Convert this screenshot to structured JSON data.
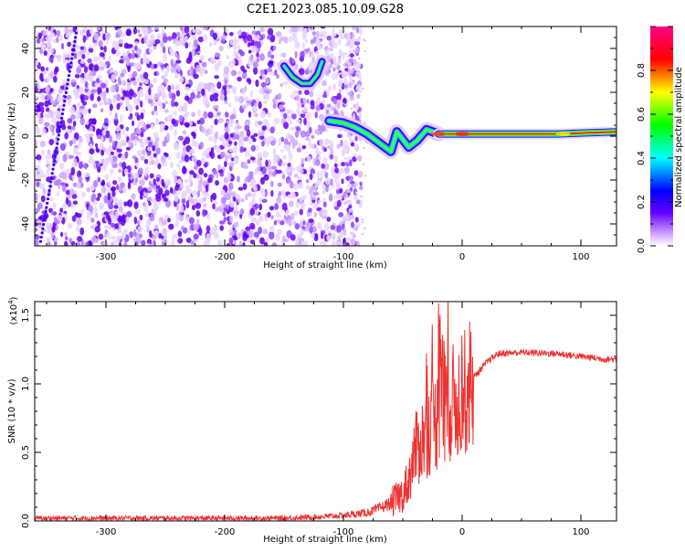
{
  "title": "C2E1.2023.085.10.09.G28",
  "chart_data": [
    {
      "type": "heatmap",
      "xlabel": "Height of straight line (km)",
      "ylabel": "Frequency (Hz)",
      "xlim": [
        -360,
        130
      ],
      "ylim": [
        -50,
        50
      ],
      "xticks": [
        -300,
        -200,
        -100,
        0,
        100
      ],
      "yticks": [
        -40,
        -20,
        0,
        20,
        40
      ],
      "colorbar": {
        "label": "Normalized spectral amplitude",
        "range": [
          0.0,
          1.0
        ],
        "ticks": [
          0.0,
          0.2,
          0.4,
          0.6,
          0.8
        ],
        "colors": [
          "#ffffff",
          "#6600ff",
          "#0000ff",
          "#00ffff",
          "#00ff00",
          "#ffff00",
          "#ff0000",
          "#ff00aa"
        ]
      },
      "features": {
        "noise_region_x": [
          -360,
          -100
        ],
        "noise_color": "#7a00ff",
        "signal_trace": [
          {
            "x": -150,
            "y": 32
          },
          {
            "x": -143,
            "y": 27
          },
          {
            "x": -135,
            "y": 24
          },
          {
            "x": -128,
            "y": 24
          },
          {
            "x": -122,
            "y": 28
          },
          {
            "x": -118,
            "y": 34
          },
          {
            "x": -112,
            "y": 7
          },
          {
            "x": -100,
            "y": 6
          },
          {
            "x": -90,
            "y": 4
          },
          {
            "x": -80,
            "y": 1
          },
          {
            "x": -70,
            "y": -3
          },
          {
            "x": -60,
            "y": -7
          },
          {
            "x": -55,
            "y": 2
          },
          {
            "x": -45,
            "y": -5
          },
          {
            "x": -38,
            "y": -2
          },
          {
            "x": -30,
            "y": 3
          },
          {
            "x": -20,
            "y": 1
          },
          {
            "x": 0,
            "y": 1
          },
          {
            "x": 40,
            "y": 1
          },
          {
            "x": 80,
            "y": 1
          },
          {
            "x": 130,
            "y": 2
          }
        ]
      }
    },
    {
      "type": "line",
      "xlabel": "Height of straight line (km)",
      "ylabel": "SNR (10 * v/v)",
      "yscale_label": "(x10",
      "yscale_exp": "4",
      "yscale_close": ")",
      "xlim": [
        -360,
        130
      ],
      "ylim": [
        0,
        1.6
      ],
      "xticks": [
        -300,
        -200,
        -100,
        0,
        100
      ],
      "yticks": [
        "0.0",
        "0.5",
        "1.0",
        "1.5"
      ],
      "series": [
        {
          "color": "#ee3333",
          "x": [
            -360,
            -300,
            -200,
            -150,
            -120,
            -100,
            -80,
            -70,
            -60,
            -50,
            -45,
            -40,
            -30,
            -20,
            -15,
            -10,
            0,
            10,
            20,
            30,
            50,
            80,
            100,
            120,
            130
          ],
          "y": [
            0.02,
            0.02,
            0.02,
            0.02,
            0.03,
            0.04,
            0.06,
            0.09,
            0.13,
            0.2,
            0.3,
            0.5,
            0.65,
            0.75,
            0.85,
            0.85,
            0.9,
            1.05,
            1.15,
            1.22,
            1.23,
            1.22,
            1.2,
            1.18,
            1.18
          ]
        }
      ]
    }
  ]
}
